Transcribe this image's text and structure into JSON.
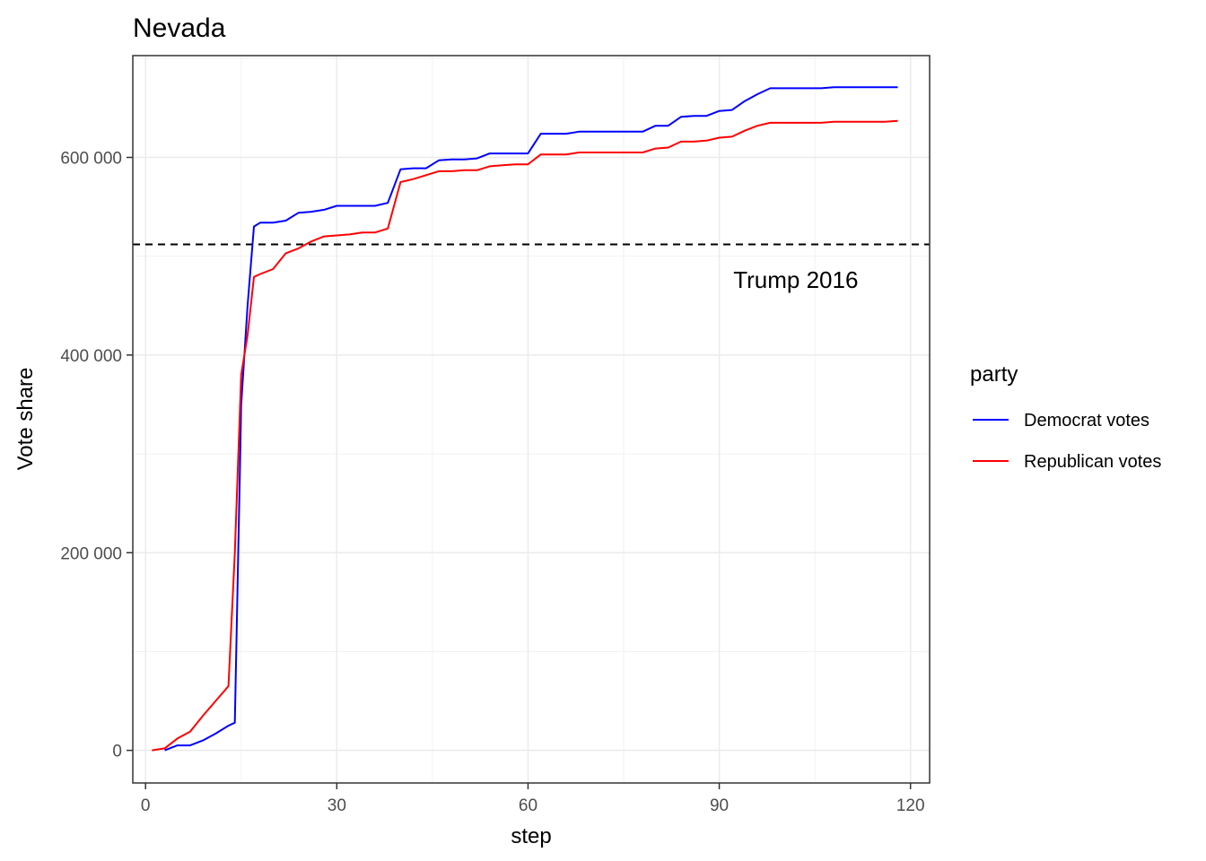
{
  "chart_data": {
    "type": "line",
    "title": "Nevada",
    "xlabel": "step",
    "ylabel": "Vote share",
    "xlim": [
      -2,
      123
    ],
    "ylim": [
      -33000,
      703000
    ],
    "x_ticks": [
      0,
      30,
      60,
      90,
      120
    ],
    "x_tick_labels": [
      "0",
      "30",
      "60",
      "90",
      "120"
    ],
    "y_ticks": [
      0,
      200000,
      400000,
      600000
    ],
    "y_tick_labels": [
      "0",
      "200 000",
      "400 000",
      "600 000"
    ],
    "grid": true,
    "legend": {
      "title": "party",
      "position": "right"
    },
    "reference_line": {
      "y": 512000,
      "label": "Trump 2016",
      "label_x": 102,
      "label_y": 476000,
      "style": "dashed",
      "color": "#000000"
    },
    "series": [
      {
        "name": "Democrat votes",
        "color": "#0000ff",
        "x": [
          3,
          5,
          7,
          9,
          11,
          13,
          14,
          15,
          16,
          17,
          18,
          20,
          22,
          24,
          26,
          28,
          30,
          32,
          34,
          36,
          38,
          40,
          42,
          44,
          46,
          48,
          50,
          52,
          54,
          56,
          58,
          60,
          62,
          64,
          66,
          68,
          70,
          72,
          74,
          76,
          78,
          80,
          82,
          84,
          86,
          88,
          90,
          92,
          94,
          96,
          98,
          100,
          102,
          104,
          106,
          108,
          110,
          112,
          114,
          116,
          118
        ],
        "y": [
          0,
          5000,
          5000,
          10000,
          17000,
          25000,
          28000,
          350000,
          450000,
          530000,
          534000,
          534000,
          536000,
          544000,
          545000,
          547000,
          551000,
          551000,
          551000,
          551000,
          554000,
          588000,
          589000,
          589000,
          597000,
          598000,
          598000,
          599000,
          604000,
          604000,
          604000,
          604000,
          624000,
          624000,
          624000,
          626000,
          626000,
          626000,
          626000,
          626000,
          626000,
          632000,
          632000,
          641000,
          642000,
          642000,
          647000,
          648000,
          657000,
          664000,
          670000,
          670000,
          670000,
          670000,
          670000,
          671000,
          671000,
          671000,
          671000,
          671000,
          671000
        ]
      },
      {
        "name": "Republican votes",
        "color": "#ff0000",
        "x": [
          1,
          3,
          5,
          7,
          9,
          11,
          13,
          14,
          15,
          16,
          17,
          18,
          20,
          22,
          24,
          26,
          28,
          30,
          32,
          34,
          36,
          38,
          40,
          42,
          44,
          46,
          48,
          50,
          52,
          54,
          56,
          58,
          60,
          62,
          64,
          66,
          68,
          70,
          72,
          74,
          76,
          78,
          80,
          82,
          84,
          86,
          88,
          90,
          92,
          94,
          96,
          98,
          100,
          102,
          104,
          106,
          108,
          110,
          112,
          114,
          116,
          118
        ],
        "y": [
          0,
          2000,
          12000,
          19000,
          35000,
          50000,
          65000,
          200000,
          380000,
          420000,
          479000,
          482000,
          487000,
          503000,
          508000,
          515000,
          520000,
          521000,
          522000,
          524000,
          524000,
          528000,
          575000,
          578000,
          582000,
          586000,
          586000,
          587000,
          587000,
          591000,
          592000,
          593000,
          593000,
          603000,
          603000,
          603000,
          605000,
          605000,
          605000,
          605000,
          605000,
          605000,
          609000,
          610000,
          616000,
          616000,
          617000,
          620000,
          621000,
          627000,
          632000,
          635000,
          635000,
          635000,
          635000,
          635000,
          636000,
          636000,
          636000,
          636000,
          636000,
          637000
        ]
      }
    ]
  }
}
